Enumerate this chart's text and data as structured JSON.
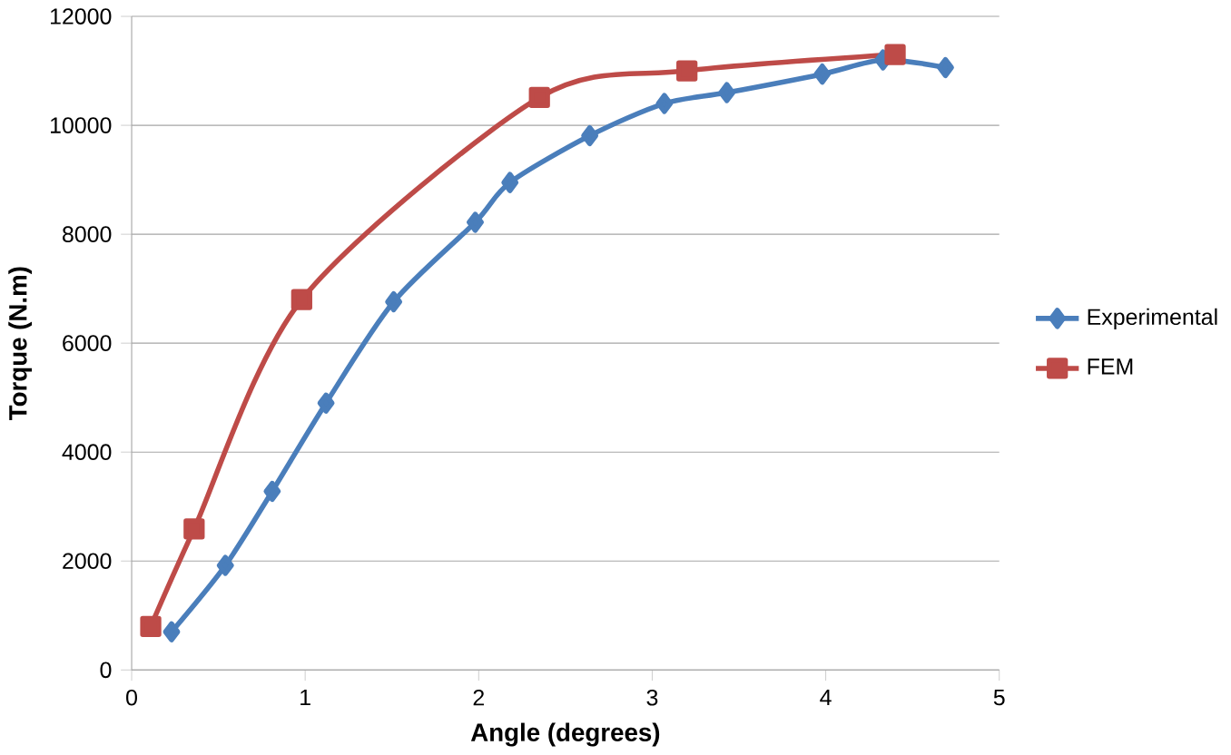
{
  "chart_data": {
    "type": "line",
    "xlabel": "Angle (degrees)",
    "ylabel": "Torque (N.m)",
    "xlim": [
      0,
      5
    ],
    "xticks": [
      0,
      1,
      2,
      3,
      4,
      5
    ],
    "ylim": [
      0,
      12000
    ],
    "yticks": [
      0,
      2000,
      4000,
      6000,
      8000,
      10000,
      12000
    ],
    "grid": "y",
    "legend": "right",
    "series": [
      {
        "name": "Experimental",
        "color": "#4a7ebb",
        "marker": "diamond",
        "x": [
          0.23,
          0.54,
          0.81,
          1.12,
          1.51,
          1.98,
          2.18,
          2.64,
          3.07,
          3.43,
          3.98,
          4.33,
          4.69
        ],
        "values": [
          700,
          1920,
          3280,
          4900,
          6760,
          8220,
          8950,
          9810,
          10400,
          10600,
          10940,
          11200,
          11060
        ]
      },
      {
        "name": "FEM",
        "color": "#be4b48",
        "marker": "square",
        "x": [
          0.11,
          0.36,
          0.98,
          2.35,
          3.2,
          4.4
        ],
        "values": [
          800,
          2590,
          6800,
          10510,
          11000,
          11300
        ]
      }
    ]
  }
}
